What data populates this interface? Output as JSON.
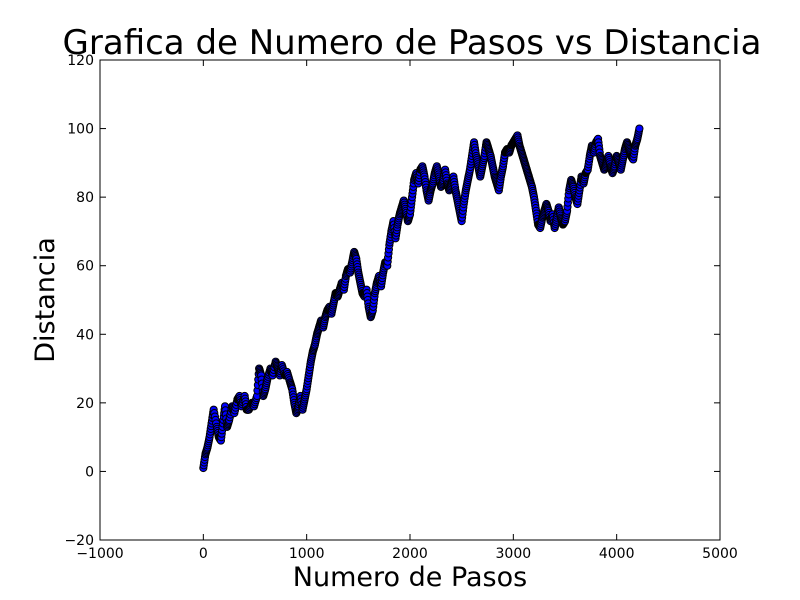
{
  "chart_data": {
    "type": "scatter",
    "title": "Grafica de Numero de Pasos vs Distancia",
    "xlabel": "Numero de Pasos",
    "ylabel": "Distancia",
    "xlim": [
      -1000,
      5000
    ],
    "ylim": [
      -20,
      120
    ],
    "xticks": [
      -1000,
      0,
      1000,
      2000,
      3000,
      4000,
      5000
    ],
    "yticks": [
      -20,
      0,
      20,
      40,
      60,
      80,
      100,
      120
    ],
    "xtick_labels": [
      "−1000",
      "0",
      "1000",
      "2000",
      "3000",
      "4000",
      "5000"
    ],
    "ytick_labels": [
      "−20",
      "0",
      "20",
      "40",
      "60",
      "80",
      "100",
      "120"
    ],
    "grid": false,
    "marker": "circle",
    "marker_fill": "#0000ff",
    "marker_edge": "#000000",
    "series": [
      {
        "points": [
          [
            0,
            1
          ],
          [
            20,
            5
          ],
          [
            40,
            7
          ],
          [
            60,
            10
          ],
          [
            80,
            14
          ],
          [
            100,
            18
          ],
          [
            130,
            13
          ],
          [
            150,
            10
          ],
          [
            170,
            9
          ],
          [
            190,
            14
          ],
          [
            210,
            19
          ],
          [
            230,
            13
          ],
          [
            250,
            15
          ],
          [
            280,
            19
          ],
          [
            300,
            17
          ],
          [
            330,
            21
          ],
          [
            350,
            22
          ],
          [
            370,
            19
          ],
          [
            400,
            22
          ],
          [
            420,
            18
          ],
          [
            440,
            18
          ],
          [
            470,
            20
          ],
          [
            490,
            19
          ],
          [
            520,
            22
          ],
          [
            540,
            30
          ],
          [
            560,
            28
          ],
          [
            580,
            22
          ],
          [
            600,
            24
          ],
          [
            620,
            27
          ],
          [
            650,
            30
          ],
          [
            670,
            28
          ],
          [
            700,
            32
          ],
          [
            720,
            30
          ],
          [
            740,
            28
          ],
          [
            760,
            31
          ],
          [
            790,
            28
          ],
          [
            810,
            29
          ],
          [
            840,
            26
          ],
          [
            860,
            24
          ],
          [
            880,
            20
          ],
          [
            900,
            17
          ],
          [
            920,
            19
          ],
          [
            940,
            22
          ],
          [
            960,
            18
          ],
          [
            980,
            21
          ],
          [
            1000,
            24
          ],
          [
            1020,
            28
          ],
          [
            1040,
            32
          ],
          [
            1060,
            35
          ],
          [
            1080,
            37
          ],
          [
            1100,
            40
          ],
          [
            1120,
            42
          ],
          [
            1140,
            44
          ],
          [
            1160,
            42
          ],
          [
            1180,
            45
          ],
          [
            1200,
            47
          ],
          [
            1220,
            48
          ],
          [
            1240,
            46
          ],
          [
            1260,
            49
          ],
          [
            1280,
            52
          ],
          [
            1300,
            51
          ],
          [
            1320,
            53
          ],
          [
            1340,
            55
          ],
          [
            1360,
            53
          ],
          [
            1380,
            57
          ],
          [
            1400,
            59
          ],
          [
            1420,
            58
          ],
          [
            1440,
            61
          ],
          [
            1460,
            64
          ],
          [
            1480,
            62
          ],
          [
            1500,
            58
          ],
          [
            1520,
            55
          ],
          [
            1540,
            52
          ],
          [
            1560,
            51
          ],
          [
            1580,
            53
          ],
          [
            1600,
            48
          ],
          [
            1620,
            45
          ],
          [
            1640,
            47
          ],
          [
            1660,
            52
          ],
          [
            1680,
            55
          ],
          [
            1700,
            57
          ],
          [
            1720,
            54
          ],
          [
            1740,
            58
          ],
          [
            1760,
            61
          ],
          [
            1780,
            60
          ],
          [
            1800,
            66
          ],
          [
            1820,
            70
          ],
          [
            1840,
            73
          ],
          [
            1860,
            68
          ],
          [
            1880,
            72
          ],
          [
            1900,
            75
          ],
          [
            1920,
            77
          ],
          [
            1940,
            79
          ],
          [
            1960,
            76
          ],
          [
            1980,
            73
          ],
          [
            2000,
            75
          ],
          [
            2020,
            80
          ],
          [
            2040,
            85
          ],
          [
            2060,
            87
          ],
          [
            2080,
            84
          ],
          [
            2100,
            88
          ],
          [
            2120,
            89
          ],
          [
            2140,
            86
          ],
          [
            2160,
            82
          ],
          [
            2180,
            79
          ],
          [
            2200,
            82
          ],
          [
            2220,
            84
          ],
          [
            2240,
            87
          ],
          [
            2260,
            89
          ],
          [
            2280,
            86
          ],
          [
            2300,
            83
          ],
          [
            2320,
            85
          ],
          [
            2340,
            88
          ],
          [
            2360,
            84
          ],
          [
            2380,
            82
          ],
          [
            2400,
            84
          ],
          [
            2420,
            86
          ],
          [
            2440,
            82
          ],
          [
            2460,
            79
          ],
          [
            2480,
            76
          ],
          [
            2500,
            73
          ],
          [
            2520,
            78
          ],
          [
            2540,
            82
          ],
          [
            2560,
            85
          ],
          [
            2580,
            88
          ],
          [
            2600,
            92
          ],
          [
            2620,
            96
          ],
          [
            2640,
            92
          ],
          [
            2660,
            89
          ],
          [
            2680,
            86
          ],
          [
            2700,
            89
          ],
          [
            2720,
            92
          ],
          [
            2740,
            96
          ],
          [
            2760,
            94
          ],
          [
            2780,
            92
          ],
          [
            2800,
            89
          ],
          [
            2820,
            86
          ],
          [
            2840,
            84
          ],
          [
            2860,
            82
          ],
          [
            2880,
            86
          ],
          [
            2900,
            89
          ],
          [
            2920,
            93
          ],
          [
            2940,
            94
          ],
          [
            2960,
            93
          ],
          [
            2980,
            95
          ],
          [
            3000,
            96
          ],
          [
            3020,
            97
          ],
          [
            3040,
            98
          ],
          [
            3060,
            95
          ],
          [
            3080,
            93
          ],
          [
            3100,
            91
          ],
          [
            3120,
            89
          ],
          [
            3140,
            87
          ],
          [
            3160,
            85
          ],
          [
            3180,
            83
          ],
          [
            3200,
            80
          ],
          [
            3220,
            76
          ],
          [
            3240,
            72
          ],
          [
            3260,
            71
          ],
          [
            3280,
            74
          ],
          [
            3300,
            76
          ],
          [
            3320,
            78
          ],
          [
            3340,
            76
          ],
          [
            3360,
            73
          ],
          [
            3380,
            75
          ],
          [
            3400,
            71
          ],
          [
            3420,
            74
          ],
          [
            3440,
            77
          ],
          [
            3460,
            74
          ],
          [
            3480,
            72
          ],
          [
            3500,
            73
          ],
          [
            3520,
            76
          ],
          [
            3540,
            82
          ],
          [
            3560,
            85
          ],
          [
            3580,
            83
          ],
          [
            3600,
            80
          ],
          [
            3620,
            78
          ],
          [
            3640,
            82
          ],
          [
            3660,
            86
          ],
          [
            3680,
            84
          ],
          [
            3700,
            87
          ],
          [
            3720,
            88
          ],
          [
            3740,
            92
          ],
          [
            3760,
            95
          ],
          [
            3780,
            93
          ],
          [
            3800,
            96
          ],
          [
            3820,
            97
          ],
          [
            3840,
            92
          ],
          [
            3860,
            90
          ],
          [
            3880,
            88
          ],
          [
            3900,
            90
          ],
          [
            3920,
            92
          ],
          [
            3940,
            89
          ],
          [
            3960,
            87
          ],
          [
            3980,
            89
          ],
          [
            4000,
            92
          ],
          [
            4020,
            90
          ],
          [
            4040,
            88
          ],
          [
            4060,
            91
          ],
          [
            4080,
            94
          ],
          [
            4100,
            96
          ],
          [
            4120,
            94
          ],
          [
            4140,
            92
          ],
          [
            4160,
            91
          ],
          [
            4180,
            95
          ],
          [
            4200,
            97
          ],
          [
            4220,
            100
          ]
        ]
      }
    ]
  }
}
